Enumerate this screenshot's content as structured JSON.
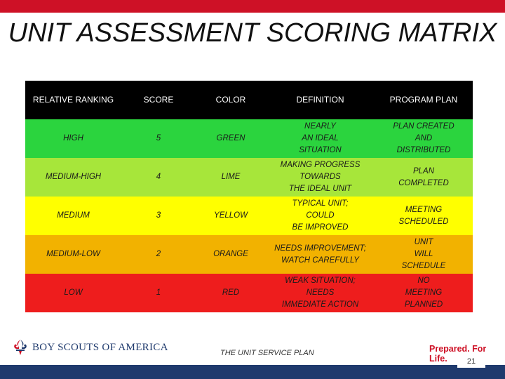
{
  "title": "UNIT ASSESSMENT SCORING MATRIX",
  "columns": [
    "RELATIVE RANKING",
    "SCORE",
    "COLOR",
    "DEFINITION",
    "PROGRAM PLAN"
  ],
  "rows": [
    {
      "ranking": "HIGH",
      "score": "5",
      "color": "GREEN",
      "definition": "NEARLY\nAN IDEAL\nSITUATION",
      "plan": "PLAN CREATED\nAND\nDISTRIBUTED",
      "bg": "#2bd43e"
    },
    {
      "ranking": "MEDIUM-HIGH",
      "score": "4",
      "color": "LIME",
      "definition": "MAKING PROGRESS\nTOWARDS\nTHE IDEAL UNIT",
      "plan": "PLAN\nCOMPLETED",
      "bg": "#a7e63a"
    },
    {
      "ranking": "MEDIUM",
      "score": "3",
      "color": "YELLOW",
      "definition": "TYPICAL UNIT;\nCOULD\nBE IMPROVED",
      "plan": "MEETING\nSCHEDULED",
      "bg": "#ffff00"
    },
    {
      "ranking": "MEDIUM-LOW",
      "score": "2",
      "color": "ORANGE",
      "definition": "NEEDS IMPROVEMENT;\nWATCH CAREFULLY",
      "plan": "UNIT\nWILL\nSCHEDULE",
      "bg": "#f2b200"
    },
    {
      "ranking": "LOW",
      "score": "1",
      "color": "RED",
      "definition": "WEAK SITUATION;\nNEEDS\nIMMEDIATE ACTION",
      "plan": "NO\nMEETING\nPLANNED",
      "bg": "#ee1d1d"
    }
  ],
  "footer": {
    "logo_text": "BOY SCOUTS OF AMERICA",
    "center_text": "THE UNIT SERVICE PLAN",
    "tagline": "Prepared. For Life.",
    "page_number": "21"
  },
  "colors": {
    "top_bar": "#ce1126",
    "bottom_bar": "#1f3a6d",
    "header_bg": "#000000"
  },
  "icons": [
    "bsa-fleur-de-lis-icon"
  ]
}
